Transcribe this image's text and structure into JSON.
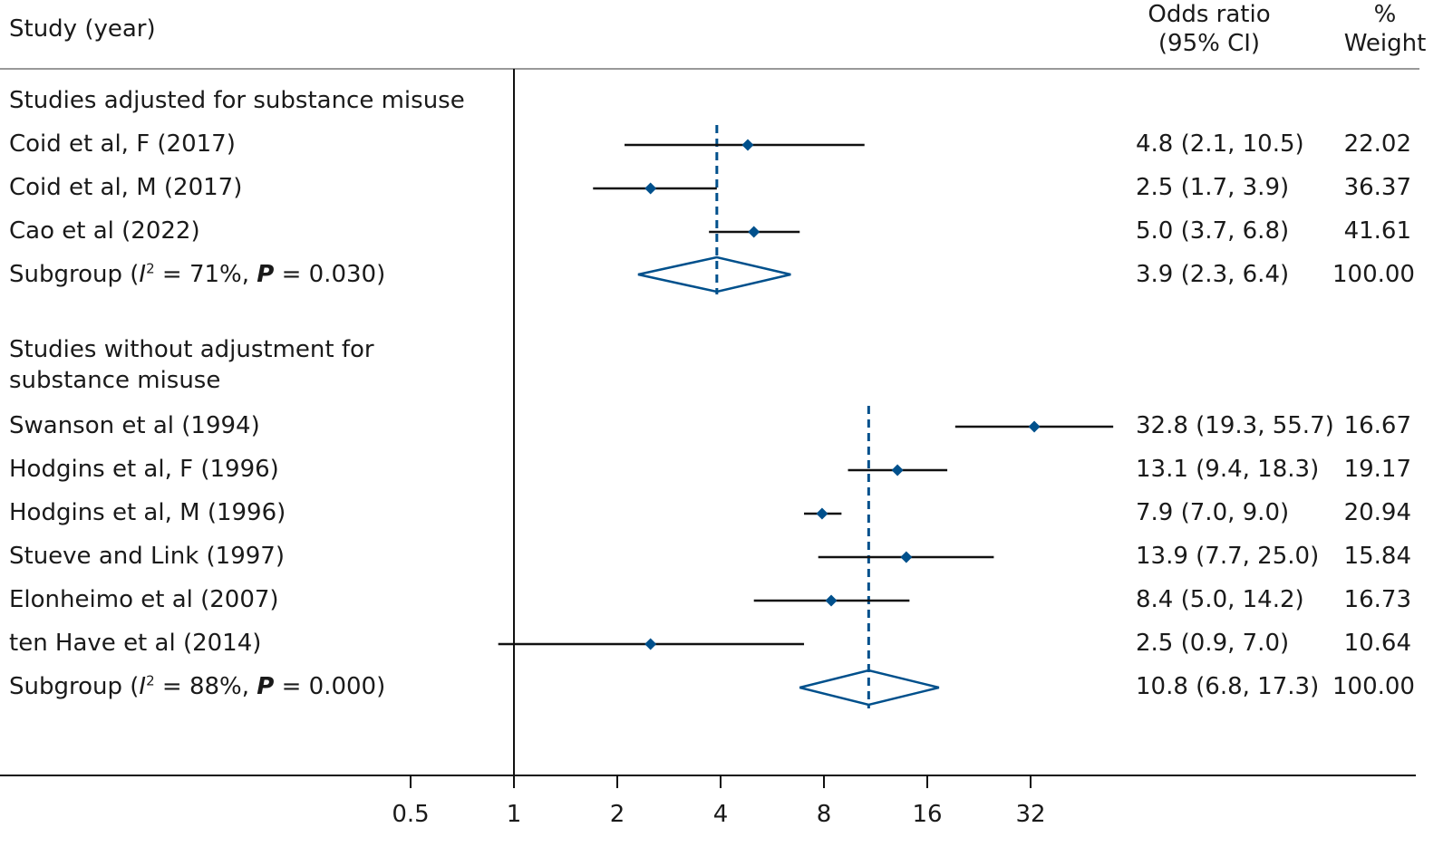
{
  "header": {
    "study": "Study (year)",
    "or_line1": "Odds ratio",
    "or_line2": "(95% CI)",
    "w_line1": "%",
    "w_line2": "Weight"
  },
  "groups": [
    {
      "title": "Studies adjusted for substance misuse",
      "studies": [
        {
          "label": "Coid et al, F (2017)",
          "or": 4.8,
          "lo": 2.1,
          "hi": 10.5,
          "ci_text": "4.8 (2.1, 10.5)",
          "weight": "22.02"
        },
        {
          "label": "Coid et al, M (2017)",
          "or": 2.5,
          "lo": 1.7,
          "hi": 3.9,
          "ci_text": "2.5 (1.7, 3.9)",
          "weight": "36.37"
        },
        {
          "label": "Cao et al (2022)",
          "or": 5.0,
          "lo": 3.7,
          "hi": 6.8,
          "ci_text": "5.0 (3.7, 6.8)",
          "weight": "41.61"
        }
      ],
      "subgroup": {
        "prefix": "Subgroup (",
        "i2_letter": "I",
        "i2_sup": "2",
        "i2_rest": " = 71%, ",
        "p_letter": "P",
        "p_rest": " = 0.030)",
        "or": 3.9,
        "lo": 2.3,
        "hi": 6.4,
        "ci_text": "3.9 (2.3, 6.4)",
        "weight": "100.00"
      }
    },
    {
      "title_line1": "Studies without adjustment for",
      "title_line2": "substance misuse",
      "studies": [
        {
          "label": "Swanson et al (1994)",
          "or": 32.8,
          "lo": 19.3,
          "hi": 55.7,
          "ci_text": "32.8 (19.3, 55.7)",
          "weight": "16.67"
        },
        {
          "label": "Hodgins et al, F (1996)",
          "or": 13.1,
          "lo": 9.4,
          "hi": 18.3,
          "ci_text": "13.1 (9.4, 18.3)",
          "weight": "19.17"
        },
        {
          "label": "Hodgins et al, M (1996)",
          "or": 7.9,
          "lo": 7.0,
          "hi": 9.0,
          "ci_text": "7.9 (7.0, 9.0)",
          "weight": "20.94"
        },
        {
          "label": "Stueve and Link (1997)",
          "or": 13.9,
          "lo": 7.7,
          "hi": 25.0,
          "ci_text": "13.9 (7.7, 25.0)",
          "weight": "15.84"
        },
        {
          "label": "Elonheimo et al (2007)",
          "or": 8.4,
          "lo": 5.0,
          "hi": 14.2,
          "ci_text": "8.4 (5.0, 14.2)",
          "weight": "16.73"
        },
        {
          "label": "ten Have et al (2014)",
          "or": 2.5,
          "lo": 0.9,
          "hi": 7.0,
          "ci_text": "2.5 (0.9, 7.0)",
          "weight": "10.64"
        }
      ],
      "subgroup": {
        "prefix": "Subgroup (",
        "i2_letter": "I",
        "i2_sup": "2",
        "i2_rest": " = 88%, ",
        "p_letter": "P",
        "p_rest": " = 0.000)",
        "or": 10.8,
        "lo": 6.8,
        "hi": 17.3,
        "ci_text": "10.8 (6.8, 17.3)",
        "weight": "100.00"
      }
    }
  ],
  "chart_data": {
    "type": "forest",
    "x_scale": "log2",
    "x_ticks": [
      "0.5",
      "1",
      "2",
      "4",
      "8",
      "16",
      "32"
    ],
    "x_tick_values": [
      0.5,
      1,
      2,
      4,
      8,
      16,
      32
    ],
    "null_line": 1,
    "marker_color": "#00508c",
    "line_color": "#111111"
  }
}
